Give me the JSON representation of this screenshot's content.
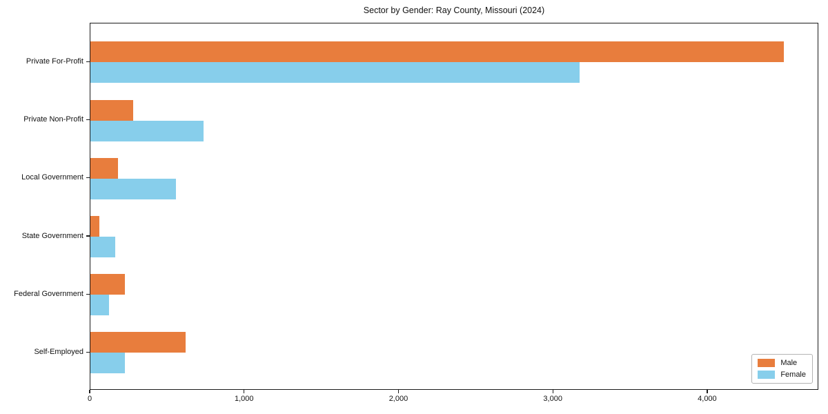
{
  "chart_data": {
    "type": "bar",
    "orientation": "horizontal",
    "title": "Sector by Gender: Ray County, Missouri (2024)",
    "categories": [
      "Private For-Profit",
      "Private Non-Profit",
      "Local Government",
      "State Government",
      "Federal Government",
      "Self-Employed"
    ],
    "series": [
      {
        "name": "Male",
        "color": "#e87d3d",
        "values": [
          4490,
          277,
          179,
          58,
          225,
          615
        ]
      },
      {
        "name": "Female",
        "color": "#87ceeb",
        "values": [
          3170,
          731,
          554,
          161,
          119,
          225
        ]
      }
    ],
    "xlabel": "",
    "ylabel": "",
    "xlim": [
      0,
      4720
    ],
    "xticks": [
      0,
      1000,
      2000,
      3000,
      4000
    ],
    "xtick_labels": [
      "0",
      "1,000",
      "2,000",
      "3,000",
      "4,000"
    ],
    "grid": false,
    "legend": {
      "position": "lower-right"
    },
    "colors": {
      "background": "#ffffff",
      "spine": "#1a1a1a",
      "text": "#111111"
    }
  }
}
